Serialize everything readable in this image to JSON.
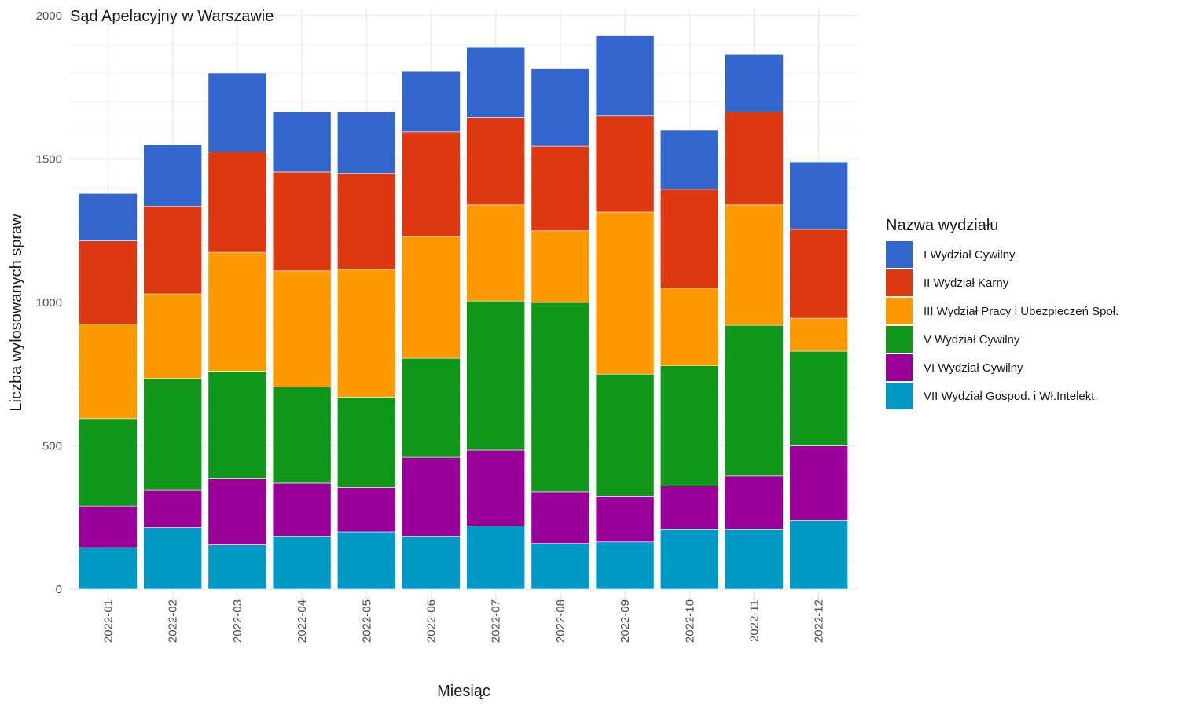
{
  "chart_data": {
    "type": "bar",
    "stacked": true,
    "title": "Sąd Apelacyjny w Warszawie",
    "xlabel": "Miesiąc",
    "ylabel": "Liczba wylosowanych spraw",
    "ylim": [
      0,
      2000
    ],
    "yticks": [
      "0",
      "500",
      "1000",
      "1500",
      "2000"
    ],
    "ytick_values": [
      0,
      500,
      1000,
      1500,
      2000
    ],
    "grid": true,
    "legend": {
      "title": "Nazwa wydziału",
      "position": "right"
    },
    "categories": [
      "2022-01",
      "2022-02",
      "2022-03",
      "2022-04",
      "2022-05",
      "2022-06",
      "2022-07",
      "2022-08",
      "2022-09",
      "2022-10",
      "2022-11",
      "2022-12"
    ],
    "series": [
      {
        "name": "VII Wydział Gospod. i Wł.Intelekt.",
        "color": "#0099C6",
        "values": [
          145,
          215,
          155,
          185,
          200,
          185,
          220,
          160,
          165,
          210,
          210,
          240
        ]
      },
      {
        "name": "VI Wydział Cywilny",
        "color": "#990099",
        "values": [
          145,
          130,
          230,
          185,
          155,
          275,
          265,
          180,
          160,
          150,
          185,
          260
        ]
      },
      {
        "name": "V Wydział Cywilny",
        "color": "#109618",
        "values": [
          305,
          390,
          375,
          335,
          315,
          345,
          520,
          660,
          425,
          420,
          525,
          330
        ]
      },
      {
        "name": "III Wydział Pracy i Ubezpieczeń Społ.",
        "color": "#FF9900",
        "values": [
          330,
          295,
          415,
          405,
          445,
          425,
          335,
          250,
          565,
          270,
          420,
          115
        ]
      },
      {
        "name": "II Wydział Karny",
        "color": "#DC3912",
        "values": [
          290,
          305,
          350,
          345,
          335,
          365,
          305,
          295,
          335,
          345,
          325,
          310
        ]
      },
      {
        "name": "I Wydział Cywilny",
        "color": "#3366CC",
        "values": [
          165,
          215,
          275,
          210,
          215,
          210,
          245,
          270,
          280,
          205,
          200,
          235
        ]
      }
    ],
    "legend_order": [
      "I Wydział Cywilny",
      "II Wydział Karny",
      "III Wydział Pracy i Ubezpieczeń Społ.",
      "V Wydział Cywilny",
      "VI Wydział Cywilny",
      "VII Wydział Gospod. i Wł.Intelekt."
    ]
  }
}
